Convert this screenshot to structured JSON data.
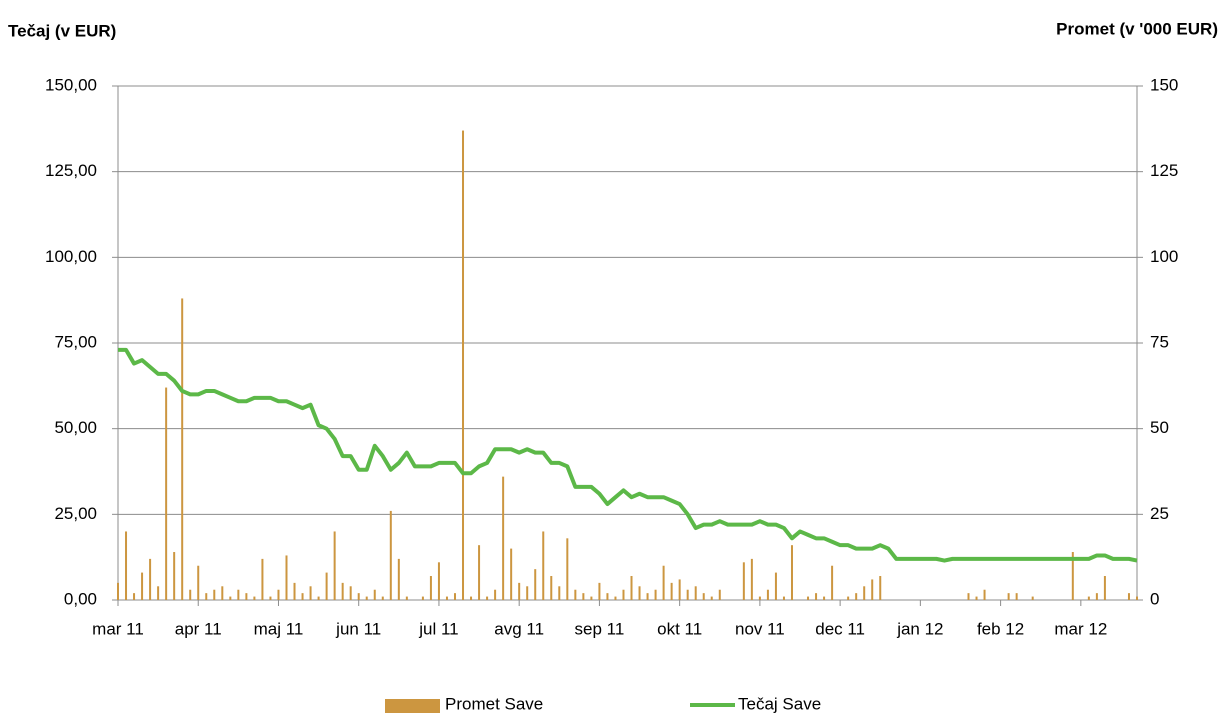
{
  "chart_data": {
    "type": "combo",
    "y_label": "Tečaj (v EUR)",
    "y2_label": "Promet (v '000 EUR)",
    "ylim": [
      0,
      150
    ],
    "yticks": [
      {
        "value": 0,
        "label": "0,00"
      },
      {
        "value": 25,
        "label": "25,00"
      },
      {
        "value": 50,
        "label": "50,00"
      },
      {
        "value": 75,
        "label": "75,00"
      },
      {
        "value": 100,
        "label": "100,00"
      },
      {
        "value": 125,
        "label": "125,00"
      },
      {
        "value": 150,
        "label": "150,00"
      }
    ],
    "y2lim": [
      0,
      150
    ],
    "y2ticks": [
      0,
      25,
      50,
      75,
      100,
      125,
      150
    ],
    "grid": true,
    "legend": "bottom",
    "categories": [
      "mar 11",
      null,
      null,
      null,
      null,
      null,
      null,
      null,
      null,
      null,
      "apr 11",
      null,
      null,
      null,
      null,
      null,
      null,
      null,
      null,
      null,
      "maj 11",
      null,
      null,
      null,
      null,
      null,
      null,
      null,
      null,
      null,
      "jun 11",
      null,
      null,
      null,
      null,
      null,
      null,
      null,
      null,
      null,
      "jul 11",
      null,
      null,
      null,
      null,
      null,
      null,
      null,
      null,
      null,
      "avg 11",
      null,
      null,
      null,
      null,
      null,
      null,
      null,
      null,
      null,
      "sep 11",
      null,
      null,
      null,
      null,
      null,
      null,
      null,
      null,
      null,
      "okt 11",
      null,
      null,
      null,
      null,
      null,
      null,
      null,
      null,
      null,
      "nov 11",
      null,
      null,
      null,
      null,
      null,
      null,
      null,
      null,
      null,
      "dec 11",
      null,
      null,
      null,
      null,
      null,
      null,
      null,
      null,
      null,
      "jan 12",
      null,
      null,
      null,
      null,
      null,
      null,
      null,
      null,
      null,
      "feb 12",
      null,
      null,
      null,
      null,
      null,
      null,
      null,
      null,
      null,
      "mar 12",
      null,
      null,
      null,
      null,
      null,
      null,
      null
    ],
    "series": [
      {
        "name": "Promet Save",
        "type": "bar",
        "axis": "y2",
        "color": "#cc9640",
        "values": [
          5,
          20,
          2,
          8,
          12,
          4,
          62,
          14,
          88,
          3,
          10,
          2,
          3,
          4,
          1,
          3,
          2,
          1,
          12,
          1,
          3,
          13,
          5,
          2,
          4,
          1,
          8,
          20,
          5,
          4,
          2,
          1,
          3,
          1,
          26,
          12,
          1,
          0,
          1,
          7,
          11,
          1,
          2,
          137,
          1,
          16,
          1,
          3,
          36,
          15,
          5,
          4,
          9,
          20,
          7,
          4,
          18,
          3,
          2,
          1,
          5,
          2,
          1,
          3,
          7,
          4,
          2,
          3,
          10,
          5,
          6,
          3,
          4,
          2,
          1,
          3,
          0,
          0,
          11,
          12,
          1,
          3,
          8,
          1,
          16,
          0,
          1,
          2,
          1,
          10,
          0,
          1,
          2,
          4,
          6,
          7,
          0,
          0,
          0,
          0,
          0,
          0,
          0,
          0,
          0,
          0,
          2,
          1,
          3,
          0,
          0,
          2,
          2,
          0,
          1,
          0,
          0,
          0,
          0,
          14,
          0,
          1,
          2,
          7,
          0,
          0,
          2,
          1
        ]
      },
      {
        "name": "Tečaj Save",
        "type": "line",
        "color": "#5cb848",
        "values": [
          73,
          73,
          69,
          70,
          68,
          66,
          66,
          64,
          61,
          60,
          60,
          61,
          61,
          60,
          59,
          58,
          58,
          59,
          59,
          59,
          58,
          58,
          57,
          56,
          57,
          51,
          50,
          47,
          42,
          42,
          38,
          38,
          45,
          42,
          38,
          40,
          43,
          39,
          39,
          39,
          40,
          40,
          40,
          37,
          37,
          39,
          40,
          44,
          44,
          44,
          43,
          44,
          43,
          43,
          40,
          40,
          39,
          33,
          33,
          33,
          31,
          28,
          30,
          32,
          30,
          31,
          30,
          30,
          30,
          29,
          28,
          25,
          21,
          22,
          22,
          23,
          22,
          22,
          22,
          22,
          23,
          22,
          22,
          21,
          18,
          20,
          19,
          18,
          18,
          17,
          16,
          16,
          15,
          15,
          15,
          16,
          15,
          12,
          12,
          12,
          12,
          12,
          12,
          11.5,
          12,
          12,
          12,
          12,
          12,
          12,
          12,
          12,
          12,
          12,
          12,
          12,
          12,
          12,
          12,
          12,
          12,
          12,
          13,
          13,
          12,
          12,
          12,
          11.5
        ]
      }
    ]
  }
}
